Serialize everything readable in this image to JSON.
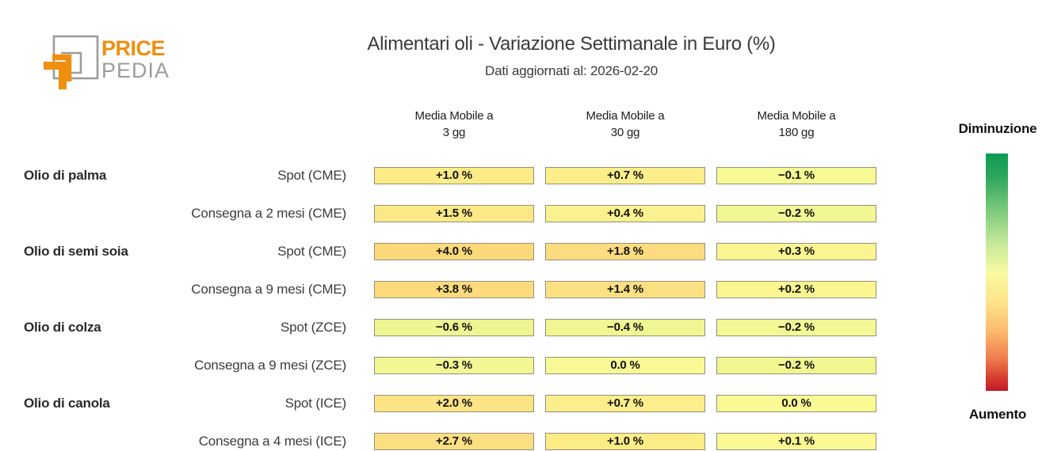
{
  "page": {
    "background": "#ffffff"
  },
  "logo": {
    "text_top": "PRICE",
    "text_bottom": "PEDIA",
    "orange": "#ee8f10",
    "gray": "#9c9c9c"
  },
  "header": {
    "title": "Alimentari oli - Variazione Settimanale in Euro (%)",
    "subtitle": "Dati aggiornati al: 2026-02-20"
  },
  "table": {
    "columns": [
      {
        "line1": "Media Mobile a",
        "line2": "3 gg"
      },
      {
        "line1": "Media Mobile a",
        "line2": "30 gg"
      },
      {
        "line1": "Media Mobile a",
        "line2": "180 gg"
      }
    ],
    "cell_border_color": "#91907f",
    "rows": [
      {
        "group": "Olio di palma",
        "label": "Spot (CME)",
        "cells": [
          {
            "text": "+1.0 %",
            "color": "#fbec86"
          },
          {
            "text": "+0.7 %",
            "color": "#fcee8a"
          },
          {
            "text": "−0.1 %",
            "color": "#f7fa94"
          }
        ]
      },
      {
        "group": "",
        "label": "Consegna a 2 mesi (CME)",
        "cells": [
          {
            "text": "+1.5 %",
            "color": "#fce985"
          },
          {
            "text": "+0.4 %",
            "color": "#f9f28e"
          },
          {
            "text": "−0.2 %",
            "color": "#f1f793"
          }
        ]
      },
      {
        "group": "Olio di semi soia",
        "label": "Spot (CME)",
        "cells": [
          {
            "text": "+4.0 %",
            "color": "#fdd97a"
          },
          {
            "text": "+1.8 %",
            "color": "#fcdc7e"
          },
          {
            "text": "+0.3 %",
            "color": "#faf590"
          }
        ]
      },
      {
        "group": "",
        "label": "Consegna a 9 mesi (CME)",
        "cells": [
          {
            "text": "+3.8 %",
            "color": "#fddb7c"
          },
          {
            "text": "+1.4 %",
            "color": "#fce082"
          },
          {
            "text": "+0.2 %",
            "color": "#fbf692"
          }
        ]
      },
      {
        "group": "Olio di colza",
        "label": "Spot (ZCE)",
        "cells": [
          {
            "text": "−0.6 %",
            "color": "#eff591"
          },
          {
            "text": "−0.4 %",
            "color": "#f1f692"
          },
          {
            "text": "−0.2 %",
            "color": "#f3f894"
          }
        ]
      },
      {
        "group": "",
        "label": "Consegna a 9 mesi (ZCE)",
        "cells": [
          {
            "text": "−0.3 %",
            "color": "#f2f693"
          },
          {
            "text": "0.0 %",
            "color": "#f9fa95"
          },
          {
            "text": "−0.2 %",
            "color": "#f0f690"
          }
        ]
      },
      {
        "group": "Olio di canola",
        "label": "Spot (ICE)",
        "cells": [
          {
            "text": "+2.0 %",
            "color": "#fce384"
          },
          {
            "text": "+0.7 %",
            "color": "#fcee8a"
          },
          {
            "text": "0.0 %",
            "color": "#fafa95"
          }
        ]
      },
      {
        "group": "",
        "label": "Consegna a 4 mesi (ICE)",
        "cells": [
          {
            "text": "+2.7 %",
            "color": "#fcdf80"
          },
          {
            "text": "+1.0 %",
            "color": "#fbec86"
          },
          {
            "text": "+0.1 %",
            "color": "#fcf893"
          }
        ]
      }
    ]
  },
  "legend": {
    "top_label": "Diminuzione",
    "bottom_label": "Aumento",
    "gradient_stops": [
      "#0c9a53 0%",
      "#2ea75e 10%",
      "#7cc97c 24%",
      "#c2e699 37%",
      "#f7fba2 50%",
      "#fde289 63%",
      "#fcb96c 75%",
      "#f07f4f 86%",
      "#d8422f 94%",
      "#c2182a 100%"
    ]
  },
  "chart_data": {
    "type": "heatmap",
    "title": "Alimentari oli - Variazione Settimanale in Euro (%)",
    "subtitle": "Dati aggiornati al: 2026-02-20",
    "unit": "%",
    "columns": [
      "Media Mobile a 3 gg",
      "Media Mobile a 30 gg",
      "Media Mobile a 180 gg"
    ],
    "rows": [
      {
        "group": "Olio di palma",
        "series": "Spot (CME)",
        "values": [
          1.0,
          0.7,
          -0.1
        ]
      },
      {
        "group": "Olio di palma",
        "series": "Consegna a 2 mesi (CME)",
        "values": [
          1.5,
          0.4,
          -0.2
        ]
      },
      {
        "group": "Olio di semi soia",
        "series": "Spot (CME)",
        "values": [
          4.0,
          1.8,
          0.3
        ]
      },
      {
        "group": "Olio di semi soia",
        "series": "Consegna a 9 mesi (CME)",
        "values": [
          3.8,
          1.4,
          0.2
        ]
      },
      {
        "group": "Olio di colza",
        "series": "Spot (ZCE)",
        "values": [
          -0.6,
          -0.4,
          -0.2
        ]
      },
      {
        "group": "Olio di colza",
        "series": "Consegna a 9 mesi (ZCE)",
        "values": [
          -0.3,
          0.0,
          -0.2
        ]
      },
      {
        "group": "Olio di canola",
        "series": "Spot (ICE)",
        "values": [
          2.0,
          0.7,
          0.0
        ]
      },
      {
        "group": "Olio di canola",
        "series": "Consegna a 4 mesi (ICE)",
        "values": [
          2.7,
          1.0,
          0.1
        ]
      }
    ],
    "colorscale": {
      "low": "green",
      "mid": "yellow",
      "high": "red",
      "low_label": "Diminuzione",
      "high_label": "Aumento"
    },
    "legend_position": "right"
  }
}
